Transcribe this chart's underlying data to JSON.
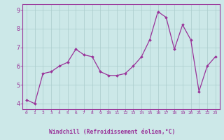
{
  "x": [
    0,
    1,
    2,
    3,
    4,
    5,
    6,
    7,
    8,
    9,
    10,
    11,
    12,
    13,
    14,
    15,
    16,
    17,
    18,
    19,
    20,
    21,
    22,
    23
  ],
  "y": [
    4.2,
    4.0,
    5.6,
    5.7,
    6.0,
    6.2,
    6.9,
    6.6,
    6.5,
    5.7,
    5.5,
    5.5,
    5.6,
    6.0,
    6.5,
    7.4,
    8.9,
    8.6,
    6.9,
    8.2,
    7.4,
    4.65,
    6.0,
    6.5
  ],
  "line_color": "#993399",
  "marker": "D",
  "marker_size": 2.0,
  "bg_color": "#cce8e8",
  "grid_color": "#aacccc",
  "xlabel": "Windchill (Refroidissement éolien,°C)",
  "text_color": "#993399",
  "ylabel_values": [
    4,
    5,
    6,
    7,
    8,
    9
  ],
  "xlim": [
    -0.5,
    23.5
  ],
  "ylim": [
    3.7,
    9.3
  ],
  "xtick_labels": [
    "0",
    "1",
    "2",
    "3",
    "4",
    "5",
    "6",
    "7",
    "8",
    "9",
    "10",
    "11",
    "12",
    "13",
    "14",
    "15",
    "16",
    "17",
    "18",
    "19",
    "20",
    "21",
    "22",
    "23"
  ]
}
